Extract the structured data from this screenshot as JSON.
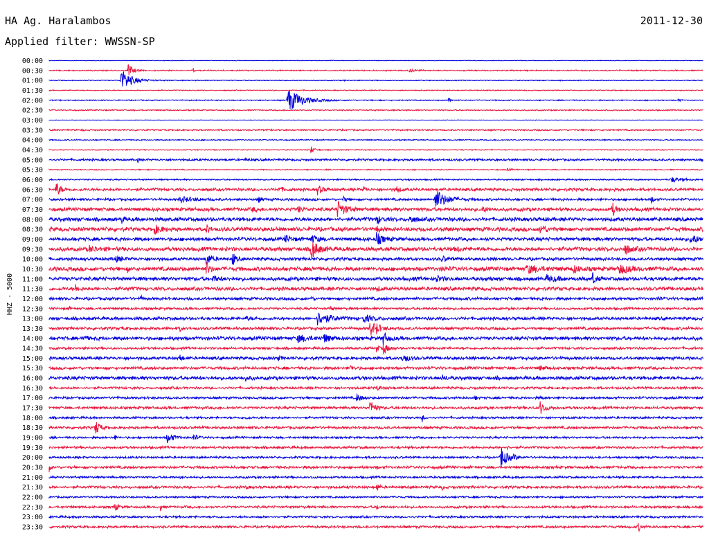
{
  "header": {
    "station": "HA Ag. Haralambos",
    "date": "2011-12-30",
    "filter": "Applied filter: WWSSN-SP"
  },
  "colors": {
    "odd": "#0000dd",
    "even": "#e8163c"
  },
  "chart_data": {
    "type": "line",
    "ylabel": "HHZ - 5000",
    "rows": [
      "00:00",
      "00:30",
      "01:00",
      "01:30",
      "02:00",
      "02:30",
      "03:00",
      "03:30",
      "04:00",
      "04:30",
      "05:00",
      "05:30",
      "06:00",
      "06:30",
      "07:00",
      "07:30",
      "08:00",
      "08:30",
      "09:00",
      "09:30",
      "10:00",
      "10:30",
      "11:00",
      "11:30",
      "12:00",
      "12:30",
      "13:00",
      "13:30",
      "14:00",
      "14:30",
      "15:00",
      "15:30",
      "16:00",
      "16:30",
      "17:00",
      "17:30",
      "18:00",
      "18:30",
      "19:00",
      "19:30",
      "20:00",
      "20:30",
      "21:00",
      "21:30",
      "22:00",
      "22:30",
      "23:00",
      "23:30"
    ],
    "noise": [
      0.5,
      1.0,
      0.7,
      0.8,
      0.9,
      1.0,
      0.4,
      1.2,
      1.0,
      0.8,
      1.8,
      0.9,
      1.2,
      2.4,
      2.0,
      3.0,
      3.2,
      3.4,
      3.0,
      3.4,
      2.6,
      3.4,
      3.2,
      3.0,
      2.4,
      2.0,
      2.6,
      2.4,
      3.0,
      2.0,
      2.6,
      2.4,
      3.0,
      2.0,
      2.0,
      2.2,
      1.8,
      2.2,
      1.8,
      2.0,
      1.8,
      2.2,
      1.8,
      2.2,
      1.6,
      2.0,
      1.8,
      2.0
    ],
    "events": [
      [
        [
          0.43,
          1,
          2.5
        ]
      ],
      [
        [
          0.12,
          12,
          6
        ],
        [
          0.22,
          5,
          1
        ],
        [
          0.55,
          2.5,
          8
        ]
      ],
      [
        [
          0.11,
          16,
          14
        ],
        [
          0.06,
          1,
          1
        ],
        [
          0.45,
          1.2,
          2
        ]
      ],
      [],
      [
        [
          0.365,
          18,
          18
        ],
        [
          0.61,
          4,
          3
        ],
        [
          0.96,
          3,
          3
        ]
      ],
      [
        [
          0.1,
          1,
          1
        ],
        [
          0.85,
          1.5,
          2
        ]
      ],
      [],
      [
        [
          0.05,
          1.2,
          2
        ],
        [
          0.94,
          3,
          1
        ]
      ],
      [
        [
          0.62,
          2.5,
          1
        ]
      ],
      [
        [
          0.4,
          5,
          5
        ]
      ],
      [
        [
          0.135,
          6,
          1
        ],
        [
          0.3,
          1.5,
          5
        ]
      ],
      [
        [
          0.7,
          1.5,
          6
        ]
      ],
      [
        [
          0.95,
          4,
          12
        ],
        [
          0.55,
          1.2,
          3
        ]
      ],
      [
        [
          0.01,
          11,
          6
        ],
        [
          0.41,
          7,
          6
        ],
        [
          0.48,
          5,
          3
        ],
        [
          0.53,
          6,
          4
        ],
        [
          0.35,
          3,
          8
        ]
      ],
      [
        [
          0.59,
          15,
          14
        ],
        [
          0.2,
          4,
          18
        ],
        [
          0.32,
          3,
          6
        ],
        [
          0.45,
          3,
          5
        ],
        [
          0.92,
          5,
          3
        ]
      ],
      [
        [
          0.44,
          12,
          10
        ],
        [
          0.31,
          4,
          4
        ],
        [
          0.38,
          4,
          6
        ],
        [
          0.66,
          4,
          8
        ],
        [
          0.86,
          12,
          4
        ]
      ],
      [
        [
          0.11,
          6,
          3
        ],
        [
          0.5,
          7,
          5
        ],
        [
          0.55,
          5,
          8
        ]
      ],
      [
        [
          0.16,
          7,
          8
        ],
        [
          0.24,
          7,
          4
        ],
        [
          0.5,
          8,
          3
        ],
        [
          0.75,
          6,
          8
        ],
        [
          0.6,
          3,
          6
        ]
      ],
      [
        [
          0.4,
          6,
          8
        ],
        [
          0.5,
          9,
          8
        ],
        [
          0.36,
          4,
          10
        ],
        [
          0.98,
          7,
          10
        ]
      ],
      [
        [
          0.4,
          16,
          8
        ],
        [
          0.06,
          4,
          10
        ],
        [
          0.62,
          4,
          6
        ],
        [
          0.88,
          7,
          8
        ]
      ],
      [
        [
          0.24,
          10,
          6
        ],
        [
          0.28,
          10,
          4
        ],
        [
          0.1,
          4,
          10
        ],
        [
          0.6,
          4,
          6
        ]
      ],
      [
        [
          0.24,
          12,
          4
        ],
        [
          0.87,
          8,
          12
        ],
        [
          0.73,
          6,
          16
        ],
        [
          0.8,
          6,
          8
        ],
        [
          0.12,
          4,
          2
        ],
        [
          0.4,
          3,
          5
        ],
        [
          0.6,
          3,
          5
        ]
      ],
      [
        [
          0.59,
          5,
          8
        ],
        [
          0.83,
          11,
          4
        ],
        [
          0.25,
          4,
          6
        ],
        [
          0.76,
          4,
          14
        ]
      ],
      [
        [
          0.04,
          6,
          3
        ],
        [
          0.12,
          3,
          2
        ],
        [
          0.5,
          3,
          6
        ]
      ],
      [
        [
          0.14,
          5,
          2
        ],
        [
          0.93,
          4,
          2
        ],
        [
          0.4,
          2,
          4
        ]
      ],
      [
        [
          0.43,
          6,
          2
        ],
        [
          0.03,
          3,
          2
        ]
      ],
      [
        [
          0.41,
          9,
          16
        ],
        [
          0.48,
          5,
          12
        ],
        [
          0.3,
          3,
          6
        ]
      ],
      [
        [
          0.49,
          10,
          10
        ],
        [
          0.11,
          4,
          2
        ],
        [
          0.2,
          4,
          2
        ],
        [
          0.5,
          4,
          4
        ]
      ],
      [
        [
          0.51,
          11,
          5
        ],
        [
          0.38,
          5,
          14
        ],
        [
          0.42,
          6,
          8
        ],
        [
          0.05,
          3,
          8
        ]
      ],
      [
        [
          0.51,
          9,
          6
        ],
        [
          0.5,
          6,
          3
        ]
      ],
      [
        [
          0.54,
          8,
          6
        ],
        [
          0.2,
          6,
          3
        ],
        [
          0.35,
          3,
          4
        ]
      ],
      [
        [
          0.46,
          4,
          4
        ],
        [
          0.75,
          3,
          8
        ]
      ],
      [
        [
          0.3,
          3,
          4
        ],
        [
          0.6,
          3,
          6
        ]
      ],
      [
        [
          0.5,
          3,
          8
        ]
      ],
      [
        [
          0.47,
          6,
          6
        ],
        [
          0.1,
          2,
          2
        ],
        [
          0.65,
          4,
          3
        ],
        [
          0.75,
          3,
          2
        ]
      ],
      [
        [
          0.49,
          12,
          6
        ],
        [
          0.75,
          10,
          6
        ]
      ],
      [
        [
          0.57,
          6,
          2
        ],
        [
          0.3,
          2,
          4
        ]
      ],
      [
        [
          0.07,
          12,
          6
        ],
        [
          0.4,
          3,
          1
        ]
      ],
      [
        [
          0.1,
          5,
          2
        ],
        [
          0.18,
          8,
          8
        ],
        [
          0.22,
          6,
          4
        ]
      ],
      [
        [
          0.7,
          2,
          2
        ]
      ],
      [
        [
          0.69,
          17,
          8
        ],
        [
          0.71,
          4,
          3
        ]
      ],
      [
        [
          0.0,
          6,
          2
        ],
        [
          0.5,
          2,
          2
        ]
      ],
      [
        [
          0.2,
          2,
          2
        ],
        [
          0.4,
          2,
          2
        ]
      ],
      [
        [
          0.5,
          8,
          3
        ],
        [
          0.3,
          3,
          3
        ],
        [
          0.6,
          3,
          3
        ]
      ],
      [
        [
          0.63,
          2,
          2
        ]
      ],
      [
        [
          0.1,
          7,
          4
        ],
        [
          0.17,
          5,
          2
        ],
        [
          0.5,
          6,
          2
        ]
      ],
      [
        [
          0.32,
          2,
          2
        ]
      ],
      [
        [
          0.9,
          7,
          3
        ]
      ]
    ]
  }
}
